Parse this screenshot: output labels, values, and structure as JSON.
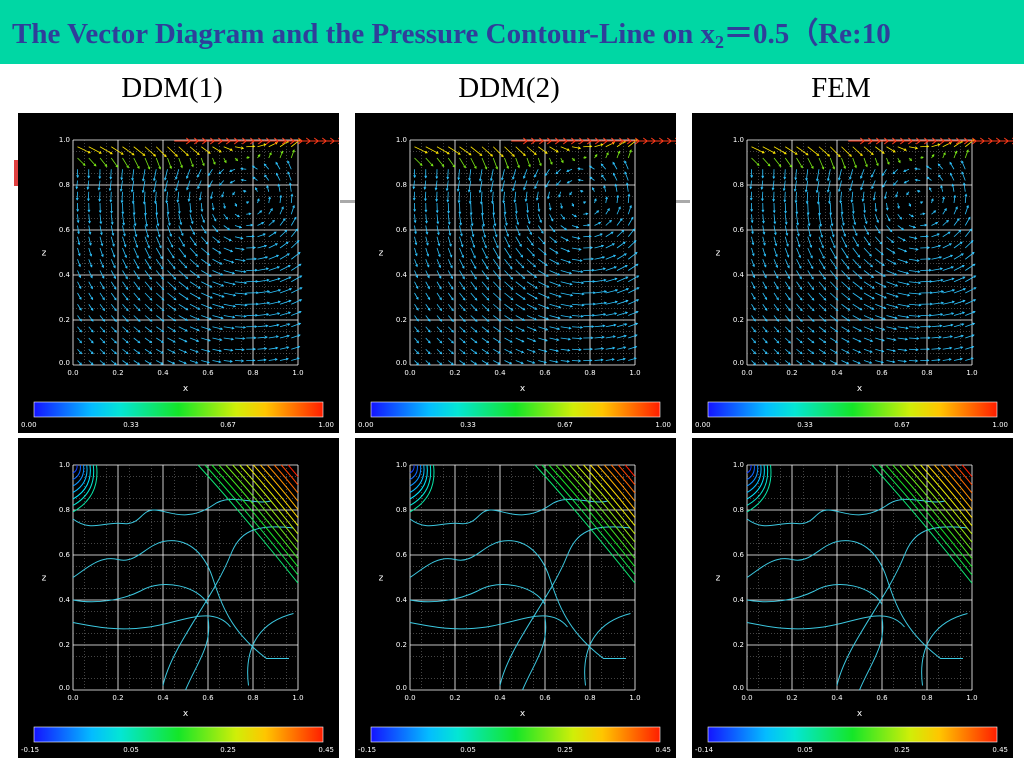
{
  "slide": {
    "title_main": "The Vector Diagram and the Pressure Contour-Line on x",
    "title_sub": "2",
    "title_tail": "＝0.5（Re:10"
  },
  "columns": [
    {
      "label": "DDM(1)"
    },
    {
      "label": "DDM(2)"
    },
    {
      "label": "FEM"
    }
  ],
  "axis": {
    "xlabel": "x",
    "ylabel": "z",
    "origin": "0.0",
    "ticks": [
      "0.0",
      "0.2",
      "0.4",
      "0.6",
      "0.8",
      "1.0"
    ]
  },
  "colors": {
    "header_bg": "#00d7a4",
    "title_text": "#2f3f9a",
    "panel_bg": "#000000",
    "grid": "#ffffff",
    "vector": "#2ec4ff",
    "contour": "#3cc8e0"
  },
  "chart_data": [
    {
      "type": "vector-field",
      "column": "DDM(1)",
      "colorbar": [
        "0.00",
        "0.33",
        "0.67",
        "1.00"
      ],
      "xlim": [
        0,
        1
      ],
      "ylim": [
        0,
        1
      ]
    },
    {
      "type": "vector-field",
      "column": "DDM(2)",
      "colorbar": [
        "0.00",
        "0.33",
        "0.67",
        "1.00"
      ],
      "xlim": [
        0,
        1
      ],
      "ylim": [
        0,
        1
      ]
    },
    {
      "type": "vector-field",
      "column": "FEM",
      "colorbar": [
        "0.00",
        "0.33",
        "0.67",
        "1.00"
      ],
      "xlim": [
        0,
        1
      ],
      "ylim": [
        0,
        1
      ]
    },
    {
      "type": "contour",
      "column": "DDM(1)",
      "colorbar": [
        "-0.15",
        "0.05",
        "0.25",
        "0.45"
      ],
      "xlim": [
        0,
        1
      ],
      "ylim": [
        0,
        1
      ]
    },
    {
      "type": "contour",
      "column": "DDM(2)",
      "colorbar": [
        "-0.15",
        "0.05",
        "0.25",
        "0.45"
      ],
      "xlim": [
        0,
        1
      ],
      "ylim": [
        0,
        1
      ]
    },
    {
      "type": "contour",
      "column": "FEM",
      "colorbar": [
        "-0.14",
        "0.05",
        "0.25",
        "0.45"
      ],
      "xlim": [
        0,
        1
      ],
      "ylim": [
        0,
        1
      ]
    }
  ]
}
